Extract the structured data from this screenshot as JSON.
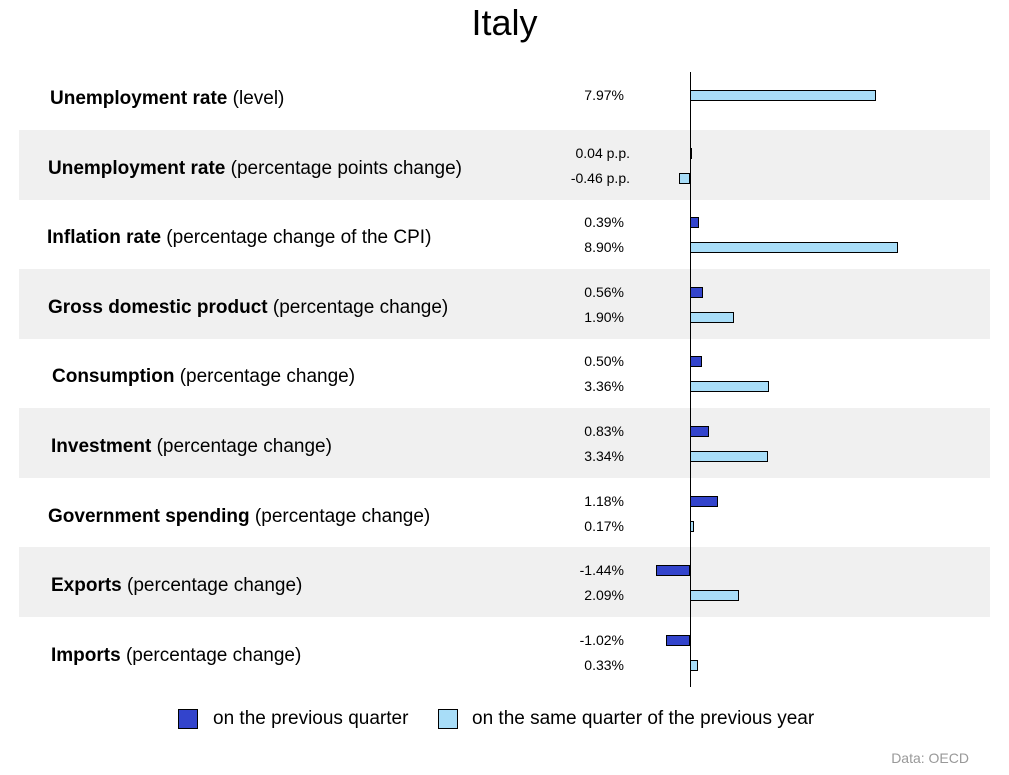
{
  "title": "Italy",
  "chart_data": {
    "type": "bar",
    "orientation": "horizontal",
    "title": "Italy",
    "series": [
      {
        "name": "on the previous quarter",
        "color": "#3344cc"
      },
      {
        "name": "on the same quarter of the previous year",
        "color": "#a8ddf8"
      }
    ],
    "rows": [
      {
        "bold": "Unemployment rate",
        "rest": " (level)",
        "shaded": false,
        "bars": [
          {
            "series": 1,
            "value": 7.97,
            "label": "7.97%"
          }
        ]
      },
      {
        "bold": "Unemployment rate",
        "rest": " (percentage points change)",
        "shaded": true,
        "bars": [
          {
            "series": 0,
            "value": 0.04,
            "label": "0.04 p.p."
          },
          {
            "series": 1,
            "value": -0.46,
            "label": "-0.46 p.p."
          }
        ]
      },
      {
        "bold": "Inflation rate",
        "rest": " (percentage change of the CPI)",
        "shaded": false,
        "bars": [
          {
            "series": 0,
            "value": 0.39,
            "label": "0.39%"
          },
          {
            "series": 1,
            "value": 8.9,
            "label": "8.90%"
          }
        ]
      },
      {
        "bold": "Gross domestic product",
        "rest": " (percentage change)",
        "shaded": true,
        "bars": [
          {
            "series": 0,
            "value": 0.56,
            "label": "0.56%"
          },
          {
            "series": 1,
            "value": 1.9,
            "label": "1.90%"
          }
        ]
      },
      {
        "bold": "Consumption",
        "rest": " (percentage change)",
        "shaded": false,
        "bars": [
          {
            "series": 0,
            "value": 0.5,
            "label": "0.50%"
          },
          {
            "series": 1,
            "value": 3.36,
            "label": "3.36%"
          }
        ]
      },
      {
        "bold": "Investment",
        "rest": " (percentage change)",
        "shaded": true,
        "bars": [
          {
            "series": 0,
            "value": 0.83,
            "label": "0.83%"
          },
          {
            "series": 1,
            "value": 3.34,
            "label": "3.34%"
          }
        ]
      },
      {
        "bold": "Government spending",
        "rest": " (percentage change)",
        "shaded": false,
        "bars": [
          {
            "series": 0,
            "value": 1.18,
            "label": "1.18%"
          },
          {
            "series": 1,
            "value": 0.17,
            "label": "0.17%"
          }
        ]
      },
      {
        "bold": "Exports",
        "rest": " (percentage change)",
        "shaded": true,
        "bars": [
          {
            "series": 0,
            "value": -1.44,
            "label": "-1.44%"
          },
          {
            "series": 1,
            "value": 2.09,
            "label": "2.09%"
          }
        ]
      },
      {
        "bold": "Imports",
        "rest": " (percentage change)",
        "shaded": false,
        "bars": [
          {
            "series": 0,
            "value": -1.02,
            "label": "-1.02%"
          },
          {
            "series": 1,
            "value": 0.33,
            "label": "0.33%"
          }
        ]
      }
    ],
    "grid": false,
    "legend_position": "bottom"
  },
  "legend": {
    "quarter": "on the previous quarter",
    "year": "on the same quarter of the previous year"
  },
  "source": "Data: OECD"
}
